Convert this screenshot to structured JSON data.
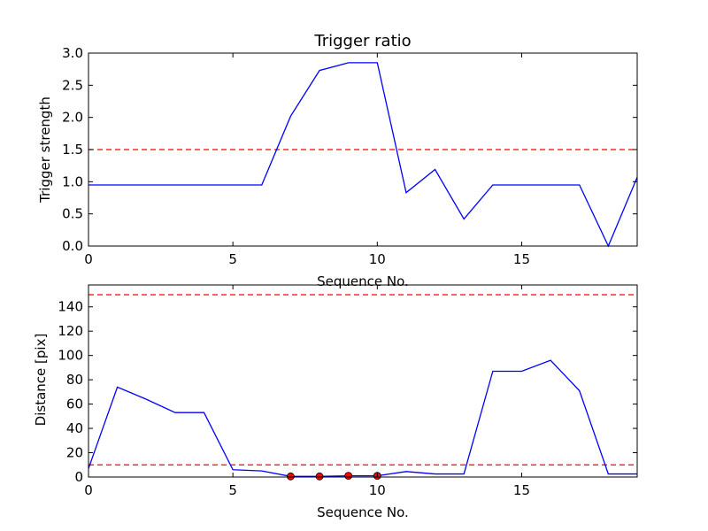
{
  "chart_data": [
    {
      "type": "line",
      "title": "Trigger ratio",
      "xlabel": "Sequence No.",
      "ylabel": "Trigger strength",
      "xlim": [
        0,
        19
      ],
      "ylim": [
        0,
        3.0
      ],
      "xticks": [
        0,
        5,
        10,
        15
      ],
      "yticks": [
        0.0,
        0.5,
        1.0,
        1.5,
        2.0,
        2.5,
        3.0
      ],
      "ytick_labels": [
        "0.0",
        "0.5",
        "1.0",
        "1.5",
        "2.0",
        "2.5",
        "3.0"
      ],
      "grid": false,
      "series": [
        {
          "color": "#0000ff",
          "x": [
            0,
            1,
            2,
            3,
            4,
            5,
            6,
            7,
            8,
            9,
            10,
            11,
            12,
            13,
            14,
            15,
            16,
            17,
            18,
            19
          ],
          "y": [
            0.95,
            0.95,
            0.95,
            0.95,
            0.95,
            0.95,
            0.95,
            2.02,
            2.73,
            2.85,
            2.85,
            0.83,
            1.19,
            0.42,
            0.95,
            0.95,
            0.95,
            0.95,
            0.0,
            1.07
          ]
        }
      ],
      "hlines": [
        {
          "y": 1.5,
          "color": "#ff0000",
          "style": "dashed"
        }
      ],
      "markers": []
    },
    {
      "type": "line",
      "title": "",
      "xlabel": "Sequence No.",
      "ylabel": "Distance [pix]",
      "xlim": [
        0,
        19
      ],
      "ylim": [
        0,
        158
      ],
      "xticks": [
        0,
        5,
        10,
        15
      ],
      "yticks": [
        0,
        20,
        40,
        60,
        80,
        100,
        120,
        140
      ],
      "ytick_labels": [
        "0",
        "20",
        "40",
        "60",
        "80",
        "100",
        "120",
        "140"
      ],
      "grid": false,
      "series": [
        {
          "color": "#0000ff",
          "x": [
            0,
            1,
            2,
            3,
            4,
            5,
            6,
            7,
            8,
            9,
            10,
            11,
            12,
            13,
            14,
            15,
            16,
            17,
            18,
            19
          ],
          "y": [
            7,
            74,
            64,
            53,
            53,
            6,
            5,
            0.5,
            0.5,
            1,
            1,
            4.5,
            2.5,
            2.5,
            87,
            87,
            96,
            71,
            2.5,
            2.5
          ]
        }
      ],
      "hlines": [
        {
          "y": 150,
          "color": "#ff0000",
          "style": "dashed"
        },
        {
          "y": 10,
          "color": "#ff0000",
          "style": "dashed"
        }
      ],
      "markers": [
        {
          "x": 7,
          "y": 0.5,
          "color": "#ff0000"
        },
        {
          "x": 8,
          "y": 0.5,
          "color": "#ff0000"
        },
        {
          "x": 9,
          "y": 1,
          "color": "#ff0000"
        },
        {
          "x": 10,
          "y": 1,
          "color": "#ff0000"
        }
      ]
    }
  ]
}
